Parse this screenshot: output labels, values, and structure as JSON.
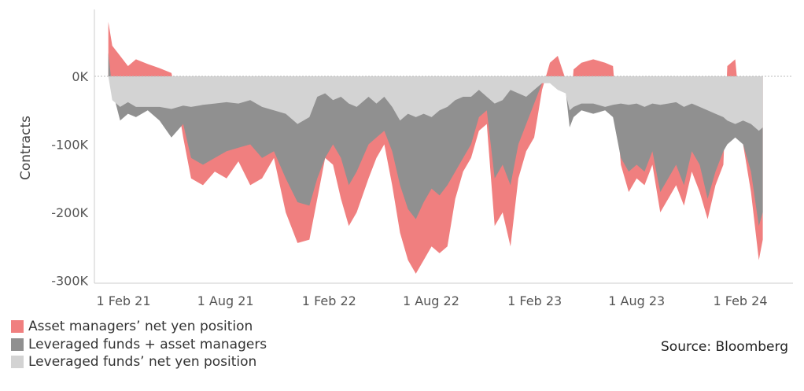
{
  "chart_data": {
    "type": "area",
    "ylabel": "Contracts",
    "ylim": [
      -310000,
      100000
    ],
    "xlim": [
      "2021-01-01",
      "2024-03-15"
    ],
    "yticks": [
      0,
      -100000,
      -200000,
      -300000
    ],
    "ytick_labels": [
      "0K",
      "-100K",
      "-200K",
      "-300K"
    ],
    "xticks": [
      "2021-02-01",
      "2021-08-01",
      "2022-02-01",
      "2022-08-01",
      "2023-02-01",
      "2023-08-01",
      "2024-02-01"
    ],
    "xtick_labels": [
      "1 Feb 21",
      "1 Aug 21",
      "1 Feb 22",
      "1 Aug 22",
      "1 Feb 23",
      "1 Aug 23",
      "1 Feb 24"
    ],
    "grid": false,
    "legend_position": "bottom-left",
    "series": [
      {
        "name": "Asset managers’ net yen position",
        "color": "#f07f7f",
        "points": [
          [
            "2021-01-05",
            80000
          ],
          [
            "2021-01-12",
            45000
          ],
          [
            "2021-01-26",
            30000
          ],
          [
            "2021-02-09",
            15000
          ],
          [
            "2021-02-23",
            25000
          ],
          [
            "2021-03-16",
            18000
          ],
          [
            "2021-04-06",
            12000
          ],
          [
            "2021-04-27",
            5000
          ],
          [
            "2021-05-04",
            -20000
          ],
          [
            "2021-05-18",
            -90000
          ],
          [
            "2021-06-01",
            -150000
          ],
          [
            "2021-06-22",
            -160000
          ],
          [
            "2021-07-13",
            -140000
          ],
          [
            "2021-08-03",
            -150000
          ],
          [
            "2021-08-24",
            -125000
          ],
          [
            "2021-09-14",
            -160000
          ],
          [
            "2021-10-05",
            -150000
          ],
          [
            "2021-10-26",
            -120000
          ],
          [
            "2021-11-16",
            -200000
          ],
          [
            "2021-12-07",
            -245000
          ],
          [
            "2021-12-28",
            -240000
          ],
          [
            "2022-01-11",
            -180000
          ],
          [
            "2022-01-25",
            -120000
          ],
          [
            "2022-02-08",
            -130000
          ],
          [
            "2022-02-22",
            -180000
          ],
          [
            "2022-03-08",
            -220000
          ],
          [
            "2022-03-22",
            -200000
          ],
          [
            "2022-04-12",
            -150000
          ],
          [
            "2022-04-26",
            -120000
          ],
          [
            "2022-05-10",
            -100000
          ],
          [
            "2022-05-24",
            -160000
          ],
          [
            "2022-06-07",
            -230000
          ],
          [
            "2022-06-21",
            -270000
          ],
          [
            "2022-07-05",
            -290000
          ],
          [
            "2022-07-19",
            -270000
          ],
          [
            "2022-08-02",
            -250000
          ],
          [
            "2022-08-16",
            -260000
          ],
          [
            "2022-08-30",
            -250000
          ],
          [
            "2022-09-13",
            -180000
          ],
          [
            "2022-09-27",
            -140000
          ],
          [
            "2022-10-11",
            -120000
          ],
          [
            "2022-10-25",
            -80000
          ],
          [
            "2022-11-08",
            -70000
          ],
          [
            "2022-11-22",
            -220000
          ],
          [
            "2022-12-06",
            -200000
          ],
          [
            "2022-12-20",
            -250000
          ],
          [
            "2023-01-03",
            -150000
          ],
          [
            "2023-01-17",
            -110000
          ],
          [
            "2023-01-31",
            -90000
          ],
          [
            "2023-02-14",
            -20000
          ],
          [
            "2023-02-28",
            20000
          ],
          [
            "2023-03-14",
            30000
          ],
          [
            "2023-03-28",
            -5000
          ],
          [
            "2023-04-04",
            -60000
          ],
          [
            "2023-04-11",
            10000
          ],
          [
            "2023-04-25",
            20000
          ],
          [
            "2023-05-16",
            25000
          ],
          [
            "2023-06-06",
            20000
          ],
          [
            "2023-06-20",
            15000
          ],
          [
            "2023-07-04",
            -130000
          ],
          [
            "2023-07-18",
            -170000
          ],
          [
            "2023-08-01",
            -150000
          ],
          [
            "2023-08-15",
            -160000
          ],
          [
            "2023-08-29",
            -130000
          ],
          [
            "2023-09-12",
            -200000
          ],
          [
            "2023-09-26",
            -180000
          ],
          [
            "2023-10-10",
            -160000
          ],
          [
            "2023-10-24",
            -190000
          ],
          [
            "2023-11-07",
            -140000
          ],
          [
            "2023-11-21",
            -170000
          ],
          [
            "2023-12-05",
            -210000
          ],
          [
            "2023-12-19",
            -160000
          ],
          [
            "2024-01-02",
            -130000
          ],
          [
            "2024-01-09",
            15000
          ],
          [
            "2024-01-23",
            25000
          ],
          [
            "2024-02-06",
            -100000
          ],
          [
            "2024-02-20",
            -170000
          ],
          [
            "2024-03-05",
            -270000
          ],
          [
            "2024-03-12",
            -240000
          ]
        ]
      },
      {
        "name": "Leveraged funds + asset managers",
        "color": "#909090",
        "points": [
          [
            "2021-01-05",
            35000
          ],
          [
            "2021-01-12",
            -20000
          ],
          [
            "2021-01-26",
            -65000
          ],
          [
            "2021-02-09",
            -55000
          ],
          [
            "2021-02-23",
            -60000
          ],
          [
            "2021-03-16",
            -50000
          ],
          [
            "2021-04-06",
            -65000
          ],
          [
            "2021-04-27",
            -90000
          ],
          [
            "2021-05-18",
            -70000
          ],
          [
            "2021-06-01",
            -120000
          ],
          [
            "2021-06-22",
            -130000
          ],
          [
            "2021-07-13",
            -120000
          ],
          [
            "2021-08-03",
            -110000
          ],
          [
            "2021-08-24",
            -105000
          ],
          [
            "2021-09-14",
            -100000
          ],
          [
            "2021-10-05",
            -120000
          ],
          [
            "2021-10-26",
            -110000
          ],
          [
            "2021-11-16",
            -150000
          ],
          [
            "2021-12-07",
            -185000
          ],
          [
            "2021-12-28",
            -190000
          ],
          [
            "2022-01-11",
            -150000
          ],
          [
            "2022-01-25",
            -120000
          ],
          [
            "2022-02-08",
            -100000
          ],
          [
            "2022-02-22",
            -120000
          ],
          [
            "2022-03-08",
            -160000
          ],
          [
            "2022-03-22",
            -140000
          ],
          [
            "2022-04-12",
            -100000
          ],
          [
            "2022-04-26",
            -90000
          ],
          [
            "2022-05-10",
            -80000
          ],
          [
            "2022-05-24",
            -110000
          ],
          [
            "2022-06-07",
            -160000
          ],
          [
            "2022-06-21",
            -195000
          ],
          [
            "2022-07-05",
            -210000
          ],
          [
            "2022-07-19",
            -185000
          ],
          [
            "2022-08-02",
            -165000
          ],
          [
            "2022-08-16",
            -175000
          ],
          [
            "2022-08-30",
            -160000
          ],
          [
            "2022-09-13",
            -140000
          ],
          [
            "2022-09-27",
            -120000
          ],
          [
            "2022-10-11",
            -100000
          ],
          [
            "2022-10-25",
            -60000
          ],
          [
            "2022-11-08",
            -50000
          ],
          [
            "2022-11-22",
            -150000
          ],
          [
            "2022-12-06",
            -130000
          ],
          [
            "2022-12-20",
            -160000
          ],
          [
            "2023-01-03",
            -100000
          ],
          [
            "2023-01-17",
            -70000
          ],
          [
            "2023-01-31",
            -40000
          ],
          [
            "2023-02-14",
            -10000
          ],
          [
            "2023-02-28",
            0
          ],
          [
            "2023-03-14",
            0
          ],
          [
            "2023-03-28",
            -20000
          ],
          [
            "2023-04-04",
            -75000
          ],
          [
            "2023-04-11",
            -60000
          ],
          [
            "2023-04-25",
            -50000
          ],
          [
            "2023-05-16",
            -55000
          ],
          [
            "2023-06-06",
            -50000
          ],
          [
            "2023-06-20",
            -60000
          ],
          [
            "2023-07-04",
            -120000
          ],
          [
            "2023-07-18",
            -140000
          ],
          [
            "2023-08-01",
            -130000
          ],
          [
            "2023-08-15",
            -140000
          ],
          [
            "2023-08-29",
            -110000
          ],
          [
            "2023-09-12",
            -170000
          ],
          [
            "2023-09-26",
            -150000
          ],
          [
            "2023-10-10",
            -130000
          ],
          [
            "2023-10-24",
            -160000
          ],
          [
            "2023-11-07",
            -110000
          ],
          [
            "2023-11-21",
            -130000
          ],
          [
            "2023-12-05",
            -180000
          ],
          [
            "2023-12-19",
            -140000
          ],
          [
            "2024-01-02",
            -110000
          ],
          [
            "2024-01-09",
            -100000
          ],
          [
            "2024-01-23",
            -90000
          ],
          [
            "2024-02-06",
            -100000
          ],
          [
            "2024-02-20",
            -140000
          ],
          [
            "2024-03-05",
            -220000
          ],
          [
            "2024-03-12",
            -200000
          ]
        ]
      },
      {
        "name": "Leveraged funds’ net yen position",
        "color": "#d3d3d3",
        "points": [
          [
            "2021-01-05",
            0
          ],
          [
            "2021-01-12",
            -35000
          ],
          [
            "2021-01-26",
            -45000
          ],
          [
            "2021-02-09",
            -38000
          ],
          [
            "2021-02-23",
            -45000
          ],
          [
            "2021-03-16",
            -45000
          ],
          [
            "2021-04-06",
            -45000
          ],
          [
            "2021-04-27",
            -48000
          ],
          [
            "2021-05-18",
            -43000
          ],
          [
            "2021-06-01",
            -45000
          ],
          [
            "2021-06-22",
            -42000
          ],
          [
            "2021-07-13",
            -40000
          ],
          [
            "2021-08-03",
            -38000
          ],
          [
            "2021-08-24",
            -40000
          ],
          [
            "2021-09-14",
            -35000
          ],
          [
            "2021-10-05",
            -45000
          ],
          [
            "2021-10-26",
            -50000
          ],
          [
            "2021-11-16",
            -55000
          ],
          [
            "2021-12-07",
            -70000
          ],
          [
            "2021-12-28",
            -60000
          ],
          [
            "2022-01-11",
            -30000
          ],
          [
            "2022-01-25",
            -25000
          ],
          [
            "2022-02-08",
            -35000
          ],
          [
            "2022-02-22",
            -30000
          ],
          [
            "2022-03-08",
            -40000
          ],
          [
            "2022-03-22",
            -45000
          ],
          [
            "2022-04-12",
            -30000
          ],
          [
            "2022-04-26",
            -40000
          ],
          [
            "2022-05-10",
            -30000
          ],
          [
            "2022-05-24",
            -45000
          ],
          [
            "2022-06-07",
            -65000
          ],
          [
            "2022-06-21",
            -55000
          ],
          [
            "2022-07-05",
            -60000
          ],
          [
            "2022-07-19",
            -55000
          ],
          [
            "2022-08-02",
            -60000
          ],
          [
            "2022-08-16",
            -50000
          ],
          [
            "2022-08-30",
            -45000
          ],
          [
            "2022-09-13",
            -35000
          ],
          [
            "2022-09-27",
            -30000
          ],
          [
            "2022-10-11",
            -30000
          ],
          [
            "2022-10-25",
            -20000
          ],
          [
            "2022-11-08",
            -30000
          ],
          [
            "2022-11-22",
            -40000
          ],
          [
            "2022-12-06",
            -35000
          ],
          [
            "2022-12-20",
            -20000
          ],
          [
            "2023-01-03",
            -25000
          ],
          [
            "2023-01-17",
            -30000
          ],
          [
            "2023-01-31",
            -20000
          ],
          [
            "2023-02-14",
            -10000
          ],
          [
            "2023-02-28",
            -10000
          ],
          [
            "2023-03-14",
            -20000
          ],
          [
            "2023-03-28",
            -25000
          ],
          [
            "2023-04-04",
            -50000
          ],
          [
            "2023-04-11",
            -45000
          ],
          [
            "2023-04-25",
            -40000
          ],
          [
            "2023-05-16",
            -40000
          ],
          [
            "2023-06-06",
            -45000
          ],
          [
            "2023-06-20",
            -42000
          ],
          [
            "2023-07-04",
            -40000
          ],
          [
            "2023-07-18",
            -42000
          ],
          [
            "2023-08-01",
            -40000
          ],
          [
            "2023-08-15",
            -45000
          ],
          [
            "2023-08-29",
            -40000
          ],
          [
            "2023-09-12",
            -42000
          ],
          [
            "2023-09-26",
            -40000
          ],
          [
            "2023-10-10",
            -38000
          ],
          [
            "2023-10-24",
            -45000
          ],
          [
            "2023-11-07",
            -40000
          ],
          [
            "2023-11-21",
            -45000
          ],
          [
            "2023-12-05",
            -50000
          ],
          [
            "2023-12-19",
            -55000
          ],
          [
            "2024-01-02",
            -60000
          ],
          [
            "2024-01-09",
            -65000
          ],
          [
            "2024-01-23",
            -70000
          ],
          [
            "2024-02-06",
            -65000
          ],
          [
            "2024-02-20",
            -70000
          ],
          [
            "2024-03-05",
            -80000
          ],
          [
            "2024-03-12",
            -75000
          ]
        ]
      }
    ]
  },
  "source": "Source: Bloomberg"
}
